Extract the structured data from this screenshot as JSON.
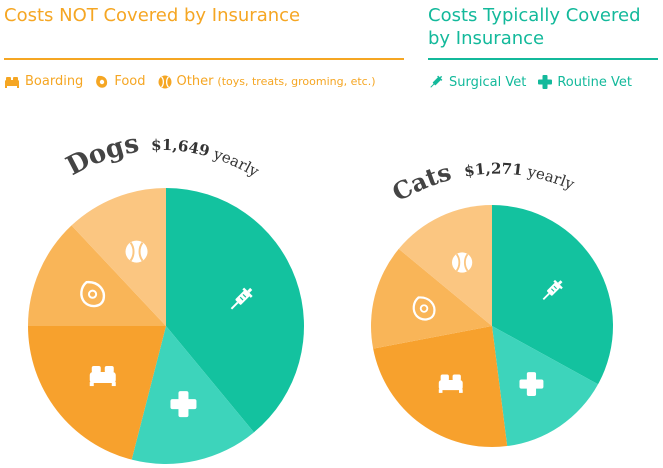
{
  "legend": {
    "not_covered_title": "Costs NOT Covered by Insurance",
    "covered_title": "Costs Typically Covered by Insurance",
    "not_covered_items": [
      {
        "label": "Boarding",
        "icon": "bed-icon"
      },
      {
        "label": "Food",
        "icon": "food-icon"
      },
      {
        "label": "Other",
        "note": "(toys, treats, grooming, etc.)",
        "icon": "ball-icon"
      }
    ],
    "covered_items": [
      {
        "label": "Surgical Vet",
        "icon": "syringe-icon"
      },
      {
        "label": "Routine Vet",
        "icon": "cross-icon"
      }
    ]
  },
  "colors": {
    "surgical": "#13c29f",
    "routine": "#3dd4bb",
    "boarding": "#f7a12d",
    "food": "#f9b558",
    "other": "#fbc681",
    "not_covered_text": "#f5a623",
    "covered_text": "#13b99b"
  },
  "chart_data": [
    {
      "type": "pie",
      "species": "Dogs",
      "total": "$1,649",
      "period": "yearly",
      "slices": [
        {
          "category": "Surgical Vet",
          "value": 39
        },
        {
          "category": "Routine Vet",
          "value": 15
        },
        {
          "category": "Boarding",
          "value": 21
        },
        {
          "category": "Food",
          "value": 13
        },
        {
          "category": "Other",
          "value": 12
        }
      ]
    },
    {
      "type": "pie",
      "species": "Cats",
      "total": "$1,271",
      "period": "yearly",
      "slices": [
        {
          "category": "Surgical Vet",
          "value": 33
        },
        {
          "category": "Routine Vet",
          "value": 15
        },
        {
          "category": "Boarding",
          "value": 24
        },
        {
          "category": "Food",
          "value": 14
        },
        {
          "category": "Other",
          "value": 14
        }
      ]
    }
  ]
}
